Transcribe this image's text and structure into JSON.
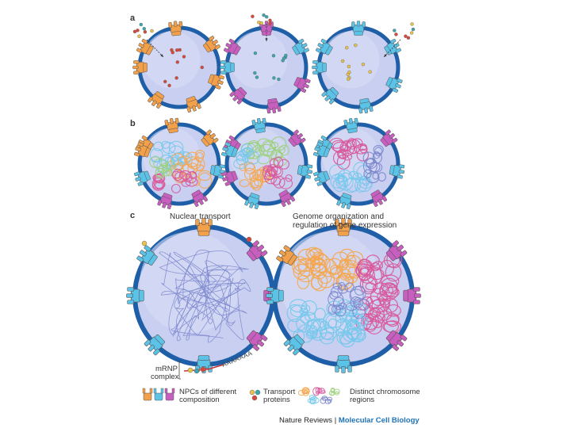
{
  "panels": {
    "a": {
      "letter": "a"
    },
    "b": {
      "letter": "b"
    },
    "c": {
      "letter": "c",
      "left_title": "Nuclear transport",
      "right_title": "Genome organization and regulation of gene expression"
    }
  },
  "mrna": {
    "label": "mRNP complex",
    "line1": "mRNP",
    "line2": "complex",
    "poly_a": "AAAAAAA"
  },
  "legend": {
    "npc_label": "NPCs of different composition",
    "npc_line1": "NPCs of different",
    "npc_line2": "composition",
    "transport_label": "Transport proteins",
    "transport_line1": "Transport",
    "transport_line2": "proteins",
    "chromosome_label": "Distinct chromosome regions",
    "chromosome_line1": "Distinct chromosome",
    "chromosome_line2": "regions"
  },
  "credit": {
    "journal": "Nature Reviews",
    "separator": " | ",
    "section": "Molecular Cell Biology"
  },
  "colors": {
    "nucleus_fill": "#c9cff0",
    "envelope": "#1f5fa8",
    "npc_orange": "#f2a04a",
    "npc_cyan": "#5cc3e8",
    "npc_magenta": "#c85fc0",
    "chrom_orange": "#f5a64e",
    "chrom_magenta": "#d8589a",
    "chrom_cyan": "#76c8ec",
    "chrom_green": "#9ad07a",
    "chrom_blue": "#7b86cc",
    "cargo_red": "#d9473a",
    "cargo_teal": "#3aa6b0",
    "cargo_yellow": "#e8c24a"
  }
}
